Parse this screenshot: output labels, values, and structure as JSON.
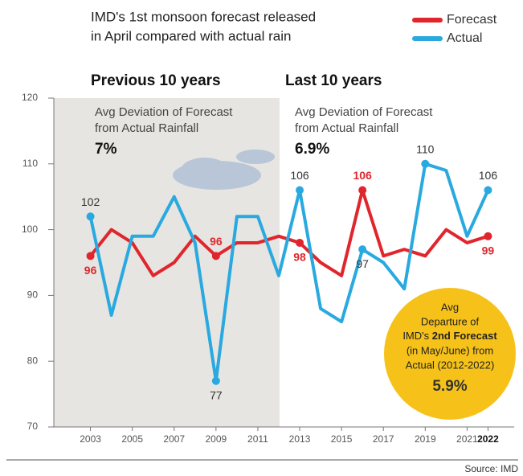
{
  "chart_data": {
    "type": "line",
    "title": [
      "IMD's 1st monsoon forecast released",
      "in April compared with actual rain"
    ],
    "x": [
      2003,
      2004,
      2005,
      2006,
      2007,
      2008,
      2009,
      2010,
      2011,
      2012,
      2013,
      2014,
      2015,
      2016,
      2017,
      2018,
      2019,
      2020,
      2021,
      2022
    ],
    "series": [
      {
        "name": "Forecast",
        "color": "#e0262c",
        "values": [
          96,
          100,
          98,
          93,
          95,
          99,
          96,
          98,
          98,
          99,
          98,
          95,
          93,
          106,
          96,
          97,
          96,
          100,
          98,
          99
        ],
        "value_labels": [
          "96",
          null,
          null,
          null,
          null,
          null,
          "96",
          null,
          null,
          null,
          "98",
          null,
          null,
          "106",
          null,
          null,
          null,
          null,
          null,
          "99"
        ]
      },
      {
        "name": "Actual",
        "color": "#29a9e0",
        "values": [
          102,
          87,
          99,
          99,
          105,
          98,
          77,
          102,
          102,
          93,
          106,
          88,
          86,
          97,
          95,
          91,
          110,
          109,
          99,
          106
        ],
        "value_labels": [
          "102",
          null,
          null,
          null,
          null,
          null,
          "77",
          null,
          null,
          null,
          "106",
          null,
          null,
          "97",
          null,
          null,
          "110",
          null,
          null,
          "106"
        ]
      }
    ],
    "xlim": [
      2001.25,
      2023.25
    ],
    "xticks": [
      2003,
      2005,
      2007,
      2009,
      2011,
      2013,
      2015,
      2017,
      2019,
      2021,
      2022
    ],
    "ylim": [
      70,
      120
    ],
    "yticks": [
      70,
      80,
      90,
      100,
      110,
      120
    ],
    "periods": [
      {
        "label": "Previous 10 years",
        "note": [
          "Avg Deviation of Forecast",
          "from Actual Rainfall"
        ],
        "deviation": "7%"
      },
      {
        "label": "Last 10 years",
        "note": [
          "Avg Deviation of Forecast",
          "from Actual Rainfall"
        ],
        "deviation": "6.9%"
      }
    ],
    "callout": {
      "lines": [
        "Avg",
        "Departure of"
      ],
      "plain": "IMD's ",
      "bold": "2nd Forecast",
      "rest": [
        "(in May/June) from",
        "Actual (2012-2022)"
      ],
      "value": "5.9%"
    },
    "source": "Source: IMD"
  }
}
